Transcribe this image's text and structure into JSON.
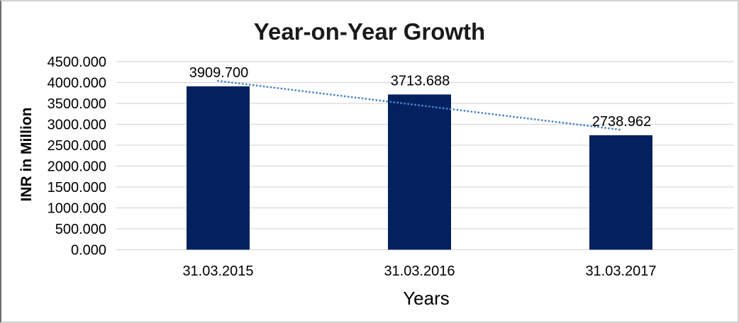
{
  "chart_data": {
    "type": "bar",
    "title": "Year-on-Year Growth",
    "xlabel": "Years",
    "ylabel": "INR in Million",
    "categories": [
      "31.03.2015",
      "31.03.2016",
      "31.03.2017"
    ],
    "values": [
      3909.7,
      3713.688,
      2738.962
    ],
    "data_labels": [
      "3909.700",
      "3713.688",
      "2738.962"
    ],
    "ylim": [
      0,
      4500
    ],
    "ytick_step": 500,
    "ytick_labels": [
      "0.000",
      "500.000",
      "1000.000",
      "1500.000",
      "2000.000",
      "2500.000",
      "3000.000",
      "3500.000",
      "4000.000",
      "4500.000"
    ],
    "grid": true,
    "legend": "none",
    "trendline": {
      "fit": "linear",
      "style": "dotted",
      "color": "#4a86c8"
    },
    "colors": {
      "bar": "#03215f",
      "gridline": "#d9d9d9",
      "title_text": "#1a1a1a",
      "axis_text": "#000000",
      "background": "#ffffff",
      "frame_border": "#cfcfcf"
    }
  }
}
